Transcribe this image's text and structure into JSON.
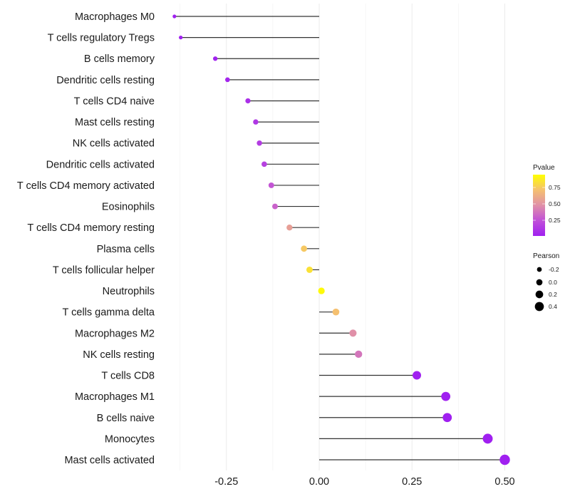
{
  "chart_data": {
    "type": "scatter",
    "subtype": "lollipop",
    "title": "",
    "xlabel": "",
    "ylabel": "",
    "xlim": [
      -0.41,
      0.52
    ],
    "x_ticks": [
      -0.25,
      0.0,
      0.25,
      0.5
    ],
    "x_tick_labels": [
      "-0.25",
      "0.00",
      "0.25",
      "0.50"
    ],
    "grid": true,
    "categories": [
      "Macrophages M0",
      "T cells regulatory  Tregs",
      "B cells memory",
      "Dendritic cells resting",
      "T cells CD4 naive",
      "Mast cells resting",
      "NK cells activated",
      "Dendritic cells activated",
      "T cells CD4 memory activated",
      "Eosinophils",
      "T cells CD4 memory resting",
      "Plasma cells",
      "T cells follicular helper",
      "Neutrophils",
      "T cells gamma delta",
      "Macrophages M2",
      "NK cells resting",
      "T cells CD8",
      "Macrophages M1",
      "B cells naive",
      "Monocytes",
      "Mast cells activated"
    ],
    "pearson": [
      -0.39,
      -0.373,
      -0.28,
      -0.247,
      -0.192,
      -0.171,
      -0.161,
      -0.148,
      -0.129,
      -0.119,
      -0.08,
      -0.041,
      -0.026,
      0.006,
      0.045,
      0.091,
      0.106,
      0.263,
      0.341,
      0.345,
      0.454,
      0.5
    ],
    "pvalue": [
      0.0,
      0.0,
      0.01,
      0.03,
      0.08,
      0.12,
      0.15,
      0.17,
      0.27,
      0.32,
      0.58,
      0.78,
      0.88,
      0.98,
      0.75,
      0.5,
      0.4,
      0.0,
      0.0,
      0.0,
      0.0,
      0.0
    ],
    "color_legend": {
      "title": "Pvalue",
      "ticks": [
        0.25,
        0.5,
        0.75
      ],
      "tick_labels": [
        "0.25",
        "0.50",
        "0.75"
      ],
      "range": [
        0.0,
        1.0
      ],
      "low_color": "#a020f0",
      "mid_color": "#e090a8",
      "high_color": "#ffff00"
    },
    "size_legend": {
      "title": "Pearson",
      "values": [
        -0.2,
        0.0,
        0.2,
        0.4
      ],
      "labels": [
        "-0.2",
        "0.0",
        "0.2",
        "0.4"
      ]
    },
    "legend_position": "right",
    "segment_color": "#000000"
  }
}
